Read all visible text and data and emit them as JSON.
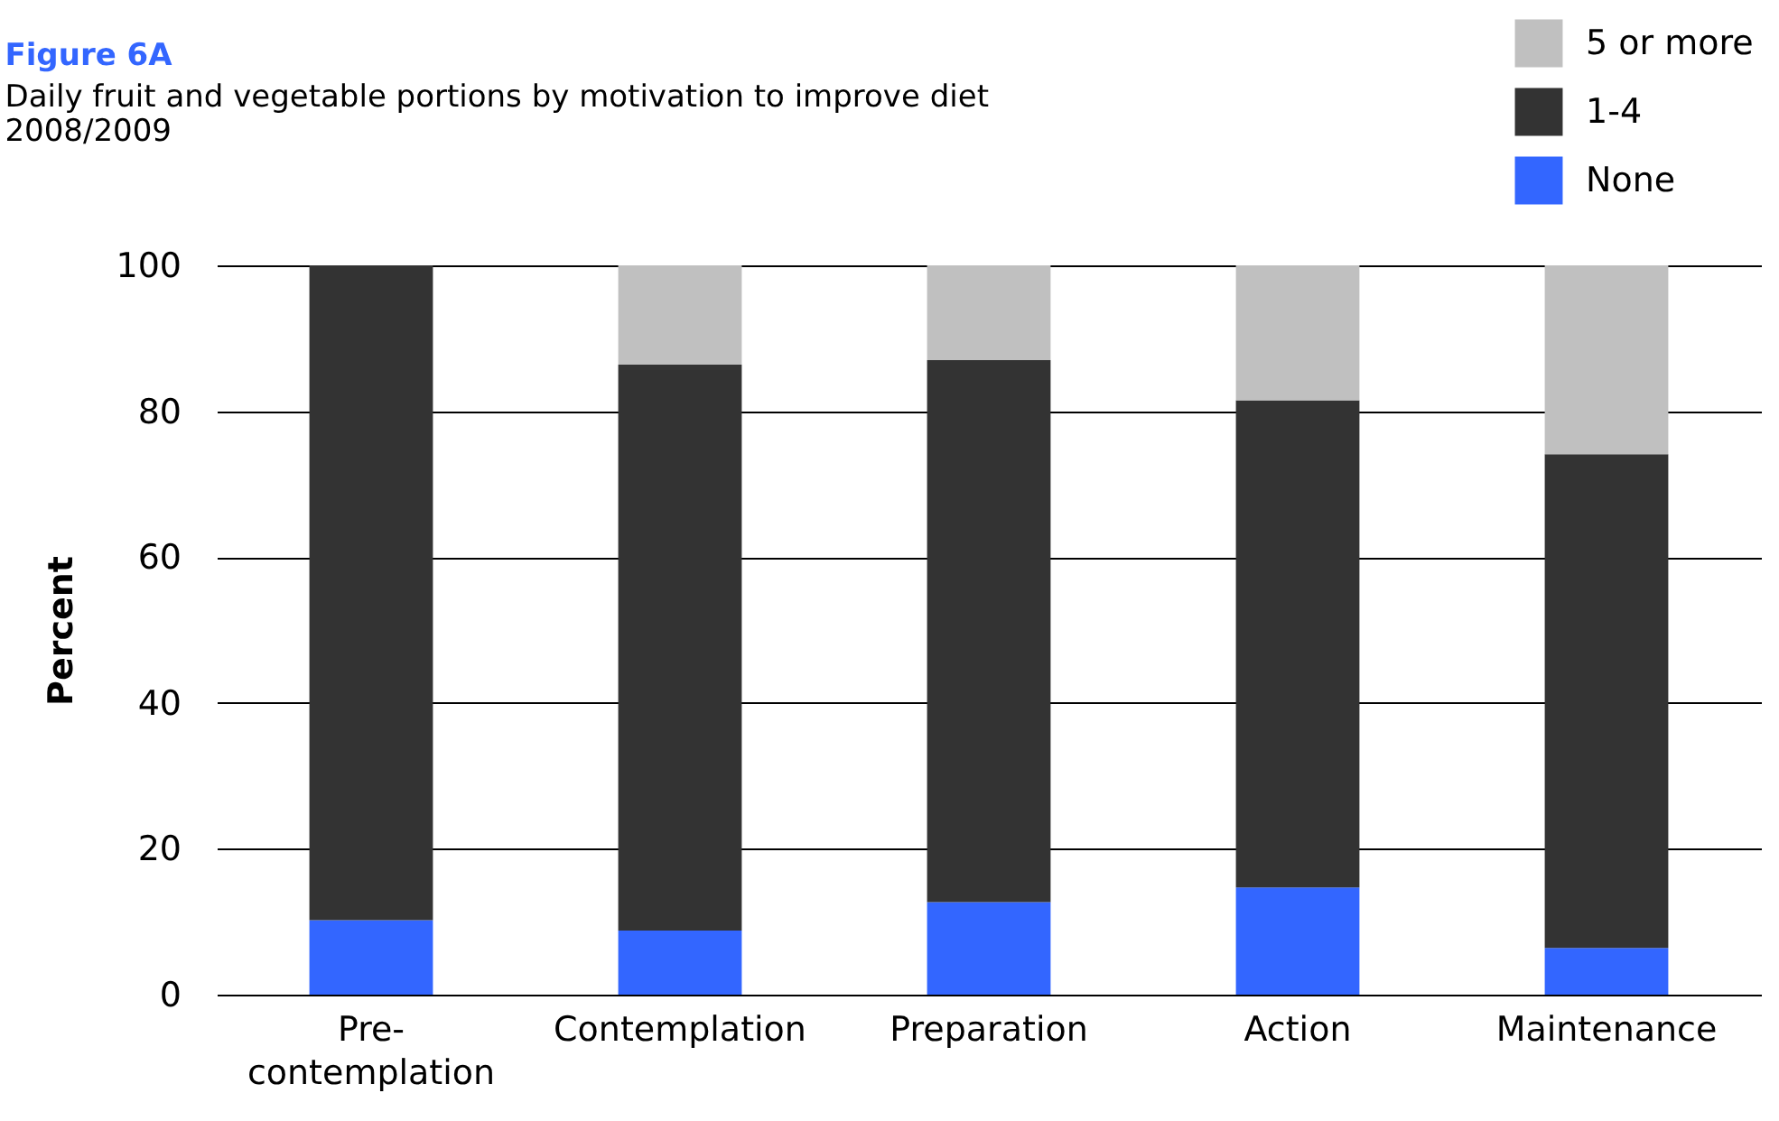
{
  "chart_data": {
    "type": "bar",
    "title": "Figure 6A",
    "subtitle": "Daily fruit and vegetable portions by motivation to improve diet\n2008/2009",
    "ylabel": "Percent",
    "categories": [
      "Pre-contemplation",
      "Contemplation",
      "Preparation",
      "Action",
      "Maintenance"
    ],
    "stacked": true,
    "series": [
      {
        "name": "None",
        "color": "#3366ff",
        "values": [
          10.2,
          8.8,
          12.7,
          14.7,
          6.4
        ]
      },
      {
        "name": "1-4",
        "color": "#333333",
        "values": [
          89.8,
          77.6,
          74.3,
          66.8,
          67.7
        ]
      },
      {
        "name": "5 or more",
        "color": "#c0c0c0",
        "values": [
          0,
          13.6,
          13.0,
          18.5,
          25.9
        ]
      }
    ],
    "ylim": [
      0,
      100
    ],
    "yticks": [
      0,
      20,
      40,
      60,
      80,
      100
    ],
    "grid": "y",
    "legend": "top right"
  }
}
